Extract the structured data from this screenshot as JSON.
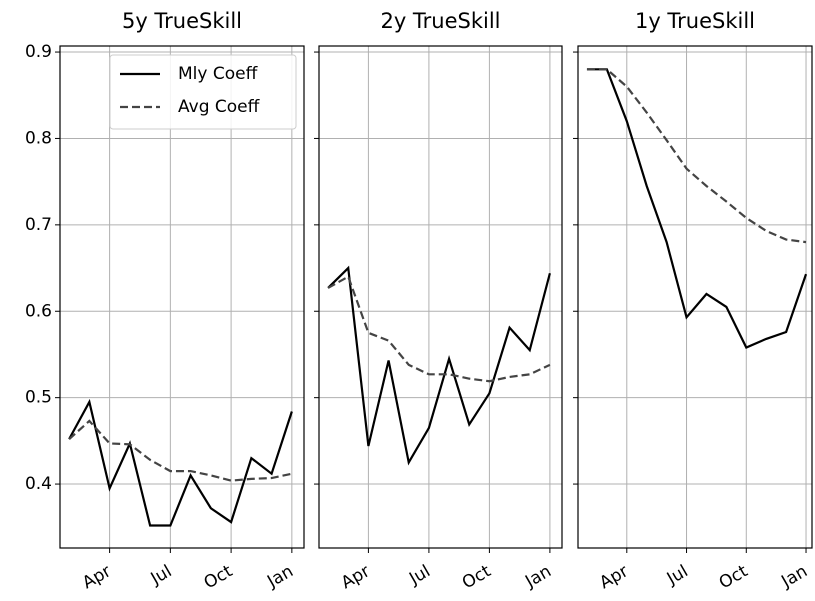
{
  "chart_data": [
    {
      "type": "line",
      "title": "5y TrueSkill",
      "legend": "upper right",
      "grid": true,
      "categories": [
        null,
        null,
        "Apr",
        null,
        null,
        "Jul",
        null,
        null,
        "Oct",
        null,
        null,
        "Jan"
      ],
      "xlim": [
        -0.45,
        11.6
      ],
      "ylim": [
        0.326,
        0.907
      ],
      "yticks": [
        0.4,
        0.5,
        0.6,
        0.7,
        0.8,
        0.9
      ],
      "series": [
        {
          "name": "Mly Coeff",
          "color": "#000000",
          "linestyle": "solid",
          "values": [
            0.452,
            0.495,
            0.395,
            0.447,
            0.352,
            0.352,
            0.41,
            0.372,
            0.356,
            0.43,
            0.412,
            0.484
          ]
        },
        {
          "name": "Avg Coeff",
          "color": "#444444",
          "linestyle": "dashed",
          "values": [
            0.452,
            0.473,
            0.447,
            0.446,
            0.428,
            0.415,
            0.415,
            0.41,
            0.404,
            0.406,
            0.407,
            0.412
          ]
        }
      ]
    },
    {
      "type": "line",
      "title": "2y TrueSkill",
      "grid": true,
      "categories": [
        null,
        null,
        "Apr",
        null,
        null,
        "Jul",
        null,
        null,
        "Oct",
        null,
        null,
        "Jan"
      ],
      "xlim": [
        -0.45,
        11.6
      ],
      "ylim": [
        0.326,
        0.907
      ],
      "series": [
        {
          "color": "#000000",
          "linestyle": "solid",
          "values": [
            0.627,
            0.65,
            0.444,
            0.543,
            0.425,
            0.465,
            0.545,
            0.469,
            0.505,
            0.581,
            0.555,
            0.644
          ]
        },
        {
          "color": "#444444",
          "linestyle": "dashed",
          "values": [
            0.627,
            0.64,
            0.575,
            0.566,
            0.538,
            0.527,
            0.527,
            0.522,
            0.519,
            0.524,
            0.527,
            0.538
          ]
        }
      ]
    },
    {
      "type": "line",
      "title": "1y TrueSkill",
      "grid": true,
      "categories": [
        null,
        null,
        "Apr",
        null,
        null,
        "Jul",
        null,
        null,
        "Oct",
        null,
        null,
        "Jan"
      ],
      "xlim": [
        -0.45,
        11.3
      ],
      "ylim": [
        0.326,
        0.907
      ],
      "series": [
        {
          "color": "#000000",
          "linestyle": "solid",
          "values": [
            0.88,
            0.88,
            0.82,
            0.745,
            0.68,
            0.593,
            0.62,
            0.605,
            0.558,
            0.568,
            0.576,
            0.643
          ]
        },
        {
          "color": "#444444",
          "linestyle": "dashed",
          "values": [
            0.88,
            0.88,
            0.86,
            0.83,
            0.798,
            0.765,
            0.745,
            0.727,
            0.708,
            0.693,
            0.683,
            0.68
          ]
        }
      ]
    }
  ]
}
